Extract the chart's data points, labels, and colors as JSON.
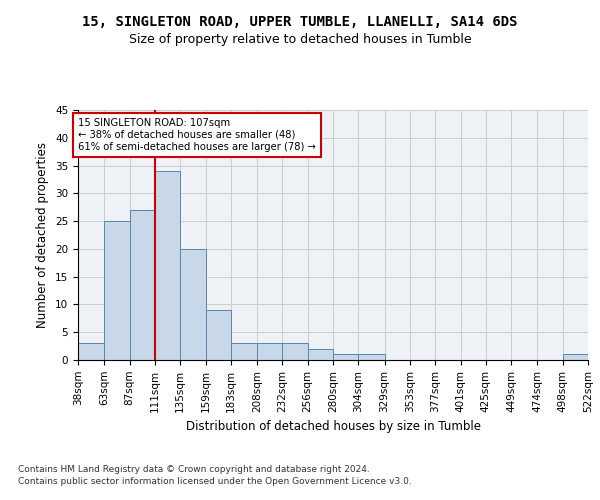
{
  "title1": "15, SINGLETON ROAD, UPPER TUMBLE, LLANELLI, SA14 6DS",
  "title2": "Size of property relative to detached houses in Tumble",
  "xlabel": "Distribution of detached houses by size in Tumble",
  "ylabel": "Number of detached properties",
  "footer1": "Contains HM Land Registry data © Crown copyright and database right 2024.",
  "footer2": "Contains public sector information licensed under the Open Government Licence v3.0.",
  "annotation_line1": "15 SINGLETON ROAD: 107sqm",
  "annotation_line2": "← 38% of detached houses are smaller (48)",
  "annotation_line3": "61% of semi-detached houses are larger (78) →",
  "property_size": 107,
  "bin_edges": [
    38,
    63,
    87,
    111,
    135,
    159,
    183,
    208,
    232,
    256,
    280,
    304,
    329,
    353,
    377,
    401,
    425,
    449,
    474,
    498,
    522
  ],
  "bar_heights": [
    3,
    25,
    27,
    34,
    20,
    9,
    3,
    3,
    3,
    2,
    1,
    1,
    0,
    0,
    0,
    0,
    0,
    0,
    0,
    1
  ],
  "bar_color": "#c8d8e8",
  "bar_edge_color": "#5588aa",
  "red_line_x": 111,
  "ylim": [
    0,
    45
  ],
  "yticks": [
    0,
    5,
    10,
    15,
    20,
    25,
    30,
    35,
    40,
    45
  ],
  "bg_color": "#eef2f7",
  "grid_color": "#cccccc",
  "annotation_box_color": "#cc0000",
  "title1_fontsize": 10,
  "title2_fontsize": 9,
  "axis_label_fontsize": 8.5,
  "tick_fontsize": 7.5,
  "footer_fontsize": 6.5
}
